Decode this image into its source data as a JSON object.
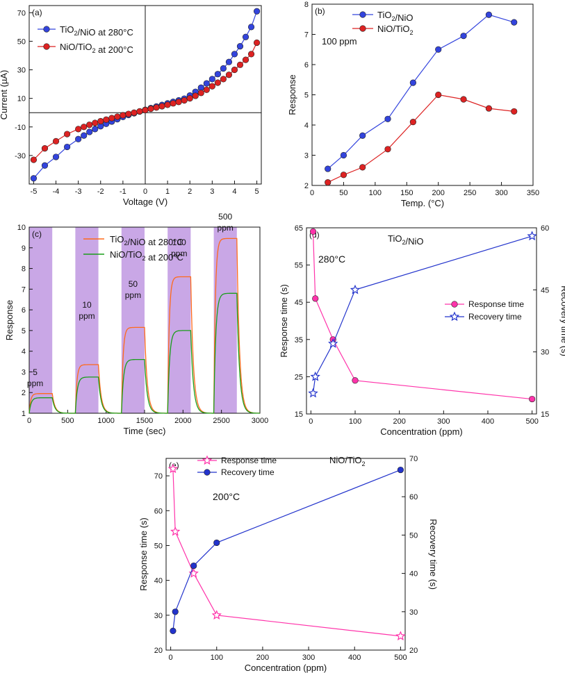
{
  "figure": {
    "background": "#ffffff"
  },
  "chart_data": [
    {
      "panel": "(a)",
      "type": "line",
      "xlabel": "Voltage (V)",
      "ylabel": "Current (µA)",
      "xlim": [
        -5.2,
        5.2
      ],
      "ylim": [
        -50,
        75
      ],
      "xticks": [
        -5,
        -4,
        -3,
        -2,
        -1,
        0,
        1,
        2,
        3,
        4,
        5
      ],
      "xtick_labels": [
        "-5",
        "-4",
        "-3",
        "-2",
        "-1",
        "0",
        "1",
        "2",
        "3",
        "4",
        "5"
      ],
      "yticks": [
        -30,
        -10,
        10,
        30,
        50,
        70
      ],
      "ytick_labels": [
        "-30",
        "-10",
        "10",
        "30",
        "50",
        "70"
      ],
      "zero_lines": true,
      "legend_position": "top-left",
      "series": [
        {
          "name": "TiO₂/NiO at 280°C",
          "color": "#3344dd",
          "marker": "circle",
          "x": [
            -5,
            -4.5,
            -4,
            -3.5,
            -3,
            -2.75,
            -2.5,
            -2.25,
            -2,
            -1.75,
            -1.5,
            -1.25,
            -1,
            -0.75,
            -0.5,
            -0.25,
            0,
            0.25,
            0.5,
            0.75,
            1,
            1.25,
            1.5,
            1.75,
            2,
            2.25,
            2.5,
            2.75,
            3,
            3.25,
            3.5,
            3.75,
            4,
            4.25,
            4.5,
            4.75,
            5
          ],
          "y": [
            -46,
            -37,
            -31,
            -24,
            -18.5,
            -16,
            -13.5,
            -11.5,
            -9.5,
            -7.8,
            -6.2,
            -4.6,
            -3,
            -1.6,
            -0.4,
            0.8,
            2,
            3.2,
            4.3,
            5.4,
            6.5,
            7.6,
            8.6,
            9.8,
            12,
            14.6,
            17.5,
            20.5,
            23.5,
            27,
            31,
            35.5,
            41,
            46.5,
            53,
            60,
            71
          ]
        },
        {
          "name": "NiO/TiO₂ at 200°C",
          "color": "#dd2222",
          "marker": "circle",
          "x": [
            -5,
            -4.5,
            -4,
            -3.5,
            -3,
            -2.75,
            -2.5,
            -2.25,
            -2,
            -1.75,
            -1.5,
            -1.25,
            -1,
            -0.75,
            -0.5,
            -0.25,
            0,
            0.25,
            0.5,
            0.75,
            1,
            1.25,
            1.5,
            1.75,
            2,
            2.25,
            2.5,
            2.75,
            3,
            3.25,
            3.5,
            3.75,
            4,
            4.25,
            4.5,
            4.75,
            5
          ],
          "y": [
            -33,
            -25,
            -20,
            -15,
            -11.5,
            -10,
            -8.5,
            -7.2,
            -6,
            -4.9,
            -3.8,
            -2.8,
            -1.8,
            -0.9,
            0,
            0.9,
            1.8,
            2.7,
            3.6,
            4.5,
            5.5,
            6.5,
            7.5,
            8.6,
            10,
            11.8,
            13.8,
            16,
            18.5,
            21,
            23.5,
            26.5,
            30,
            33.5,
            37,
            41,
            49
          ]
        }
      ],
      "ticks_inward": true
    },
    {
      "panel": "(b)",
      "type": "line",
      "xlabel": "Temp. (°C)",
      "ylabel": "Response",
      "xlim": [
        0,
        350
      ],
      "ylim": [
        2,
        8
      ],
      "xticks": [
        0,
        50,
        100,
        150,
        200,
        250,
        300,
        350
      ],
      "yticks": [
        2,
        3,
        4,
        5,
        6,
        7,
        8
      ],
      "annotation": "100 ppm",
      "legend_position": "top-left",
      "series": [
        {
          "name": "TiO₂/NiO",
          "color": "#3344dd",
          "marker": "circle",
          "x": [
            25,
            50,
            80,
            120,
            160,
            200,
            240,
            280,
            320
          ],
          "y": [
            2.55,
            3.0,
            3.65,
            4.2,
            5.4,
            6.5,
            6.95,
            7.65,
            7.4
          ]
        },
        {
          "name": "NiO/TiO₂",
          "color": "#dd2222",
          "marker": "circle",
          "x": [
            25,
            50,
            80,
            120,
            160,
            200,
            240,
            280,
            320
          ],
          "y": [
            2.1,
            2.35,
            2.6,
            3.2,
            4.1,
            5.0,
            4.85,
            4.55,
            4.45
          ]
        }
      ]
    },
    {
      "panel": "(c)",
      "type": "line",
      "xlabel": "Time (sec)",
      "ylabel": "Response",
      "xlim": [
        0,
        3000
      ],
      "ylim": [
        1,
        10
      ],
      "xticks": [
        0,
        500,
        1000,
        1500,
        2000,
        2500,
        3000
      ],
      "yticks": [
        1,
        2,
        3,
        4,
        5,
        6,
        7,
        8,
        9,
        10
      ],
      "shade_color": "#c9a7e6",
      "gas_on_intervals": [
        [
          0,
          300
        ],
        [
          600,
          900
        ],
        [
          1200,
          1500
        ],
        [
          1800,
          2100
        ],
        [
          2400,
          2700
        ]
      ],
      "pulse_labels": [
        {
          "value": "5",
          "unit": "ppm"
        },
        {
          "value": "10",
          "unit": "ppm"
        },
        {
          "value": "50",
          "unit": "ppm"
        },
        {
          "value": "100",
          "unit": "ppm"
        },
        {
          "value": "500",
          "unit": "ppm"
        }
      ],
      "legend_position": "top-center",
      "series": [
        {
          "name": "TiO₂/NiO at 280°C",
          "color": "#ff6a1a",
          "peaks": [
            1.95,
            3.35,
            5.15,
            7.6,
            9.45
          ]
        },
        {
          "name": "NiO/TiO₂ at 200°C",
          "color": "#1a9e1a",
          "peaks": [
            1.75,
            2.75,
            3.6,
            5.0,
            6.8
          ]
        }
      ]
    },
    {
      "panel": "(d)",
      "type": "line",
      "title": "TiO₂/NiO",
      "annotation": "280°C",
      "xlabel": "Concentration (ppm)",
      "ylabel": "Response time (s)",
      "y2label": "Recovery time (s)",
      "xlim": [
        -10,
        510
      ],
      "ylim": [
        15,
        65
      ],
      "y2lim": [
        15,
        60
      ],
      "xticks": [
        0,
        100,
        200,
        300,
        400,
        500
      ],
      "yticks": [
        15,
        25,
        35,
        45,
        55,
        65
      ],
      "y2ticks": [
        15,
        30,
        45,
        60
      ],
      "legend_position": "center-right",
      "series": [
        {
          "name": "Response time",
          "axis": "left",
          "color": "#ff33aa",
          "marker": "circle",
          "x": [
            5,
            10,
            50,
            100,
            500
          ],
          "y": [
            64,
            46,
            35,
            24,
            19
          ]
        },
        {
          "name": "Recovery time",
          "axis": "right",
          "color": "#2233cc",
          "marker": "star",
          "x": [
            5,
            10,
            50,
            100,
            500
          ],
          "y": [
            20,
            24,
            32,
            45,
            58
          ]
        }
      ]
    },
    {
      "panel": "(e)",
      "type": "line",
      "title": "NiO/TiO₂",
      "annotation": "200°C",
      "xlabel": "Concentration (ppm)",
      "ylabel": "Response time (s)",
      "y2label": "Recovery time (s)",
      "xlim": [
        -10,
        510
      ],
      "ylim": [
        20,
        75
      ],
      "y2lim": [
        20,
        70
      ],
      "xticks": [
        0,
        100,
        200,
        300,
        400,
        500
      ],
      "yticks": [
        20,
        30,
        40,
        50,
        60,
        70
      ],
      "y2ticks": [
        20,
        30,
        40,
        50,
        60,
        70
      ],
      "legend_position": "top-left",
      "series": [
        {
          "name": "Response time",
          "axis": "left",
          "color": "#ff33aa",
          "marker": "star",
          "x": [
            5,
            10,
            50,
            100,
            500
          ],
          "y": [
            72,
            54,
            42,
            30,
            24
          ]
        },
        {
          "name": "Recovery time",
          "axis": "right",
          "color": "#2233cc",
          "marker": "circle",
          "x": [
            5,
            10,
            50,
            100,
            500
          ],
          "y": [
            25,
            30,
            42,
            48,
            67
          ]
        }
      ]
    }
  ]
}
